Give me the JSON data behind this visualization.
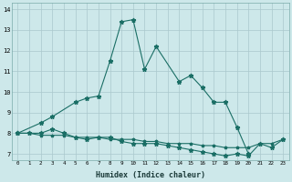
{
  "xlabel": "Humidex (Indice chaleur)",
  "series1_x": [
    0,
    1,
    2,
    3,
    4,
    5,
    6,
    7,
    8,
    9,
    10,
    11,
    12,
    13,
    14,
    15,
    16,
    17,
    18,
    19,
    20,
    21,
    22,
    23
  ],
  "series1_y": [
    8.0,
    8.0,
    8.0,
    8.2,
    8.0,
    7.8,
    7.7,
    7.8,
    7.8,
    7.6,
    7.5,
    7.5,
    7.5,
    7.4,
    7.3,
    7.2,
    7.1,
    7.0,
    6.9,
    7.0,
    6.9,
    7.5,
    7.3,
    7.7
  ],
  "series2_x": [
    0,
    2,
    3,
    5,
    6,
    7,
    8,
    9,
    10,
    11,
    12,
    14,
    15,
    16,
    17,
    18,
    19,
    20
  ],
  "series2_y": [
    8.0,
    8.5,
    8.8,
    9.5,
    9.7,
    9.8,
    11.5,
    13.4,
    13.5,
    11.1,
    12.2,
    10.5,
    10.8,
    10.2,
    9.5,
    9.5,
    8.3,
    7.0
  ],
  "series3_x": [
    0,
    1,
    2,
    3,
    4,
    5,
    6,
    7,
    8,
    9,
    10,
    11,
    12,
    13,
    14,
    15,
    16,
    17,
    18,
    19,
    20,
    21,
    22,
    23
  ],
  "series3_y": [
    8.0,
    8.0,
    7.9,
    7.9,
    7.9,
    7.8,
    7.8,
    7.8,
    7.7,
    7.7,
    7.7,
    7.6,
    7.6,
    7.5,
    7.5,
    7.5,
    7.4,
    7.4,
    7.3,
    7.3,
    7.3,
    7.5,
    7.5,
    7.7
  ],
  "bg_color": "#cde8ea",
  "grid_color": "#aac8cc",
  "line_color": "#1a6e65",
  "ylim": [
    6.7,
    14.3
  ],
  "yticks": [
    7,
    8,
    9,
    10,
    11,
    12,
    13,
    14
  ],
  "xlim": [
    -0.5,
    23.5
  ]
}
